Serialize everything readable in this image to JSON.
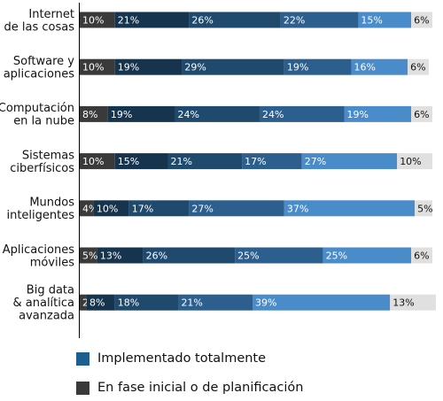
{
  "chart_data": {
    "type": "bar",
    "orientation": "horizontal",
    "stacked": true,
    "title": "",
    "xlabel": "",
    "ylabel": "",
    "xlim": [
      0,
      100
    ],
    "grid": false,
    "categories": [
      [
        "Internet",
        "de las cosas"
      ],
      [
        "Software y",
        "aplicaciones"
      ],
      [
        "Computación",
        "en la nube"
      ],
      [
        "Sistemas",
        "ciberfísicos"
      ],
      [
        "Mundos",
        "inteligentes"
      ],
      [
        "Aplicaciones",
        "móviles"
      ],
      [
        "Big data",
        "& analítica",
        "avanzada"
      ]
    ],
    "series": [
      {
        "color": "#3a3a3a",
        "label_color": "#ffffff",
        "values": [
          10,
          10,
          8,
          10,
          4,
          5,
          2
        ]
      },
      {
        "color": "#17344f",
        "label_color": "#ffffff",
        "values": [
          21,
          19,
          19,
          15,
          10,
          13,
          8
        ]
      },
      {
        "color": "#1f4a6e",
        "label_color": "#ffffff",
        "values": [
          26,
          29,
          24,
          21,
          17,
          26,
          18
        ]
      },
      {
        "color": "#2c5f8e",
        "label_color": "#ffffff",
        "values": [
          22,
          19,
          24,
          17,
          27,
          25,
          21
        ]
      },
      {
        "color": "#4a8cc9",
        "label_color": "#ffffff",
        "values": [
          15,
          16,
          19,
          27,
          37,
          25,
          39
        ]
      },
      {
        "color": "#e0e0e0",
        "label_color": "#111111",
        "values": [
          6,
          6,
          6,
          10,
          5,
          6,
          13
        ]
      }
    ],
    "legend": {
      "position": "bottom-left",
      "entries": [
        {
          "label": "Implementado totalmente",
          "color": "#1c5f8f"
        },
        {
          "label": "En fase inicial o de planificación",
          "color": "#3a3a3a"
        }
      ]
    }
  }
}
